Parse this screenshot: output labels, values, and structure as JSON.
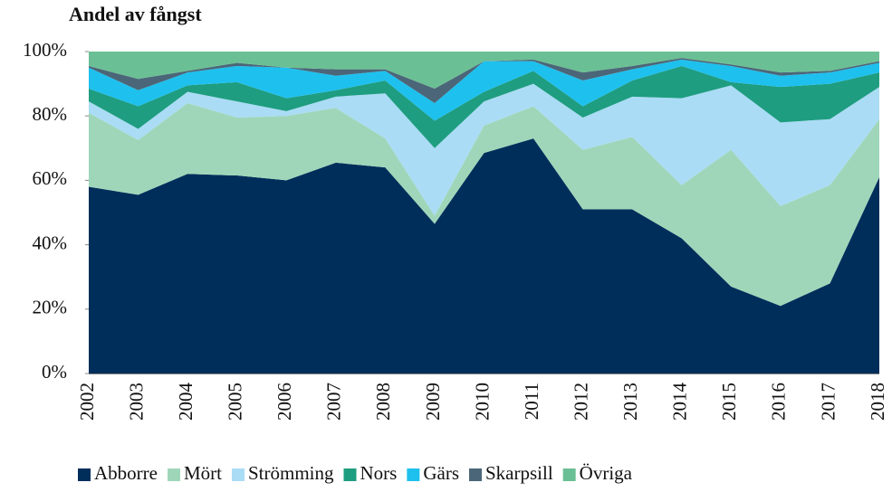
{
  "chart_data": {
    "type": "stacked-area",
    "title": "Andel av fångst",
    "categories": [
      "2002",
      "2003",
      "2004",
      "2005",
      "2006",
      "2007",
      "2008",
      "2009",
      "2010",
      "2011",
      "2012",
      "2013",
      "2014",
      "2015",
      "2016",
      "2017",
      "2018"
    ],
    "ylim": [
      0,
      100
    ],
    "yticks": [
      {
        "value": 0,
        "label": "0%"
      },
      {
        "value": 20,
        "label": "20%"
      },
      {
        "value": 40,
        "label": "40%"
      },
      {
        "value": 60,
        "label": "60%"
      },
      {
        "value": 80,
        "label": "80%"
      },
      {
        "value": 100,
        "label": "100%"
      }
    ],
    "legend": "bottom",
    "series": [
      {
        "name": "Abborre",
        "color": "#002e5b",
        "values": [
          58,
          55.5,
          62,
          61.5,
          60,
          65.5,
          64,
          46.5,
          68.5,
          73,
          51,
          51,
          42,
          27,
          21,
          28,
          61
        ]
      },
      {
        "name": "Mört",
        "color": "#9fd6b9",
        "values": [
          23,
          17,
          22,
          18,
          20,
          17,
          9,
          2.5,
          8.5,
          10,
          18.5,
          22.5,
          16.5,
          42.5,
          31,
          30.5,
          18
        ]
      },
      {
        "name": "Strömming",
        "color": "#aadcf5",
        "values": [
          3.5,
          3.5,
          3.5,
          5,
          1.5,
          3.5,
          14,
          21,
          7.5,
          7,
          10,
          12.5,
          27,
          20,
          26,
          20.5,
          10
        ]
      },
      {
        "name": "Nors",
        "color": "#1e9d80",
        "values": [
          4,
          7,
          2,
          6,
          4,
          2,
          4,
          8.5,
          3,
          4,
          3.5,
          5,
          10,
          1,
          11,
          11,
          4.5
        ]
      },
      {
        "name": "Gärs",
        "color": "#1ec0ee",
        "values": [
          6.5,
          5,
          4,
          5,
          9.5,
          4.5,
          3,
          5.5,
          9.5,
          3,
          8,
          3.5,
          2,
          5,
          3.5,
          3.5,
          3
        ]
      },
      {
        "name": "Skarpsill",
        "color": "#4b6678",
        "values": [
          0.5,
          3.5,
          0.5,
          1,
          0,
          2,
          0.5,
          4.5,
          0,
          0.5,
          2.5,
          1,
          0.5,
          0.5,
          1,
          0.5,
          0.5
        ]
      },
      {
        "name": "Övriga",
        "color": "#6bbf94",
        "values": [
          4.5,
          8.5,
          6,
          3.5,
          5,
          5.5,
          5.5,
          11.5,
          3,
          2.5,
          6.5,
          4.5,
          2,
          4,
          6.5,
          6,
          3
        ]
      }
    ]
  }
}
